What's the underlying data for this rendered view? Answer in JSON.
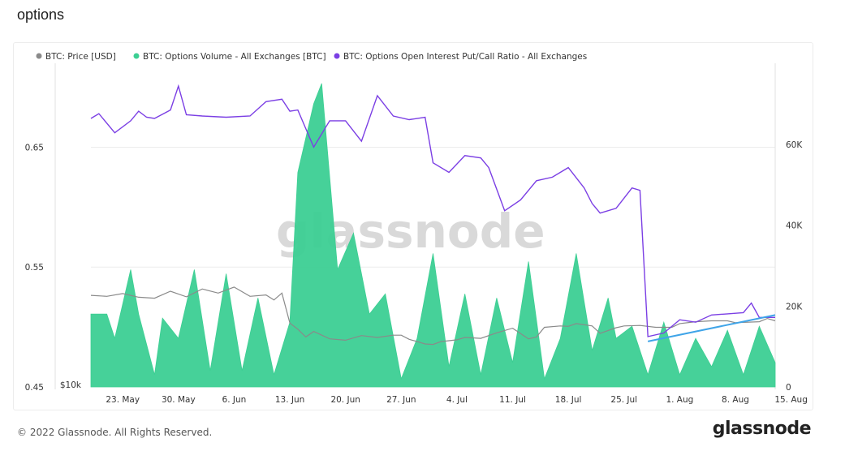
{
  "page": {
    "title": "options"
  },
  "footer": {
    "copyright": "© 2022 Glassnode. All Rights Reserved.",
    "logo": "glassnode"
  },
  "watermark": "glassnode",
  "colors": {
    "price": "#8a8a8a",
    "volume": "#3ccf93",
    "ratio": "#7b3fe4",
    "trend": "#3fa4e8",
    "grid": "#ececec"
  },
  "chart_data": {
    "type": "area",
    "legend": [
      {
        "name": "BTC: Price [USD]",
        "color": "#8a8a8a"
      },
      {
        "name": "BTC: Options Volume - All Exchanges [BTC]",
        "color": "#3ccf93"
      },
      {
        "name": "BTC: Options Open Interest Put/Call Ratio - All Exchanges",
        "color": "#7b3fe4"
      }
    ],
    "x_ticks": [
      "23. May",
      "30. May",
      "6. Jun",
      "13. Jun",
      "20. Jun",
      "27. Jun",
      "4. Jul",
      "11. Jul",
      "18. Jul",
      "25. Jul",
      "1. Aug",
      "8. Aug",
      "15. Aug"
    ],
    "left_axis": {
      "ticks": [
        "0.65",
        "0.55",
        "0.45"
      ],
      "values": [
        0.65,
        0.55,
        0.45
      ],
      "range": [
        0.45,
        0.72
      ]
    },
    "left_axis_price_label": "$10k",
    "right_axis": {
      "ticks": [
        "60K",
        "40K",
        "20K",
        "0"
      ],
      "values": [
        60000,
        40000,
        20000,
        0
      ],
      "range": [
        0,
        80000
      ]
    },
    "price_range": [
      10000,
      80000
    ],
    "series": [
      {
        "name": "BTC: Price [USD]",
        "axis": "left",
        "values": [
          [
            0,
            29800
          ],
          [
            2,
            29600
          ],
          [
            4,
            30200
          ],
          [
            6,
            29400
          ],
          [
            8,
            29200
          ],
          [
            10,
            30700
          ],
          [
            12,
            29500
          ],
          [
            14,
            31200
          ],
          [
            16,
            30300
          ],
          [
            18,
            31600
          ],
          [
            20,
            29600
          ],
          [
            22,
            29900
          ],
          [
            23,
            28800
          ],
          [
            24,
            30300
          ],
          [
            25,
            23800
          ],
          [
            26,
            22500
          ],
          [
            27,
            20800
          ],
          [
            28,
            22000
          ],
          [
            30,
            20400
          ],
          [
            32,
            20100
          ],
          [
            34,
            21100
          ],
          [
            36,
            20700
          ],
          [
            38,
            21200
          ],
          [
            39,
            21200
          ],
          [
            40,
            20300
          ],
          [
            42,
            19300
          ],
          [
            43,
            19200
          ],
          [
            44,
            19800
          ],
          [
            46,
            20200
          ],
          [
            47,
            20700
          ],
          [
            49,
            20500
          ],
          [
            51,
            21700
          ],
          [
            53,
            22700
          ],
          [
            55,
            20400
          ],
          [
            56,
            20800
          ],
          [
            57,
            22900
          ],
          [
            59,
            23200
          ],
          [
            60,
            23100
          ],
          [
            61,
            23700
          ],
          [
            63,
            23200
          ],
          [
            64,
            21600
          ],
          [
            66,
            22800
          ],
          [
            67,
            23200
          ],
          [
            69,
            23300
          ],
          [
            71,
            22900
          ],
          [
            73,
            22900
          ],
          [
            74,
            23700
          ],
          [
            76,
            24100
          ],
          [
            78,
            24300
          ],
          [
            80,
            24300
          ],
          [
            81,
            23900
          ],
          [
            84,
            24100
          ],
          [
            85,
            24800
          ],
          [
            86,
            24300
          ]
        ]
      },
      {
        "name": "BTC: Options Volume - All Exchanges [BTC]",
        "axis": "right",
        "values": [
          [
            0,
            18000
          ],
          [
            2,
            18000
          ],
          [
            3,
            12000
          ],
          [
            5,
            29000
          ],
          [
            6,
            18000
          ],
          [
            8,
            3000
          ],
          [
            9,
            17000
          ],
          [
            11,
            12000
          ],
          [
            13,
            29000
          ],
          [
            15,
            4000
          ],
          [
            17,
            28000
          ],
          [
            19,
            4000
          ],
          [
            21,
            22000
          ],
          [
            23,
            3000
          ],
          [
            25,
            16000
          ],
          [
            26,
            53000
          ],
          [
            28,
            70000
          ],
          [
            29,
            75000
          ],
          [
            31,
            29000
          ],
          [
            33,
            38000
          ],
          [
            35,
            18000
          ],
          [
            37,
            23000
          ],
          [
            39,
            2000
          ],
          [
            41,
            12000
          ],
          [
            43,
            33000
          ],
          [
            45,
            5000
          ],
          [
            47,
            23000
          ],
          [
            49,
            3000
          ],
          [
            51,
            22000
          ],
          [
            53,
            6000
          ],
          [
            55,
            31000
          ],
          [
            57,
            2000
          ],
          [
            59,
            12000
          ],
          [
            61,
            33000
          ],
          [
            63,
            9000
          ],
          [
            65,
            22000
          ],
          [
            66,
            12000
          ],
          [
            68,
            15000
          ],
          [
            70,
            3000
          ],
          [
            72,
            16000
          ],
          [
            74,
            3000
          ],
          [
            76,
            12000
          ],
          [
            78,
            5000
          ],
          [
            80,
            14000
          ],
          [
            82,
            3000
          ],
          [
            84,
            15000
          ],
          [
            86,
            6000
          ]
        ]
      },
      {
        "name": "BTC: Options Open Interest Put/Call Ratio - All Exchanges",
        "axis": "left",
        "values": [
          [
            0,
            0.674
          ],
          [
            1,
            0.678
          ],
          [
            3,
            0.662
          ],
          [
            5,
            0.672
          ],
          [
            6,
            0.68
          ],
          [
            7,
            0.675
          ],
          [
            8,
            0.674
          ],
          [
            10,
            0.681
          ],
          [
            11,
            0.701
          ],
          [
            12,
            0.677
          ],
          [
            14,
            0.676
          ],
          [
            17,
            0.675
          ],
          [
            20,
            0.676
          ],
          [
            22,
            0.688
          ],
          [
            24,
            0.69
          ],
          [
            25,
            0.68
          ],
          [
            26,
            0.681
          ],
          [
            28,
            0.65
          ],
          [
            30,
            0.672
          ],
          [
            32,
            0.672
          ],
          [
            34,
            0.655
          ],
          [
            36,
            0.693
          ],
          [
            38,
            0.676
          ],
          [
            40,
            0.673
          ],
          [
            42,
            0.675
          ],
          [
            43,
            0.637
          ],
          [
            45,
            0.629
          ],
          [
            47,
            0.643
          ],
          [
            49,
            0.641
          ],
          [
            50,
            0.633
          ],
          [
            52,
            0.597
          ],
          [
            54,
            0.606
          ],
          [
            56,
            0.622
          ],
          [
            58,
            0.625
          ],
          [
            60,
            0.633
          ],
          [
            62,
            0.616
          ],
          [
            63,
            0.603
          ],
          [
            64,
            0.595
          ],
          [
            66,
            0.599
          ],
          [
            68,
            0.616
          ],
          [
            69,
            0.614
          ],
          [
            70,
            0.492
          ],
          [
            72,
            0.495
          ],
          [
            74,
            0.506
          ],
          [
            76,
            0.504
          ],
          [
            78,
            0.51
          ],
          [
            80,
            0.511
          ],
          [
            82,
            0.512
          ],
          [
            83,
            0.52
          ],
          [
            84,
            0.508
          ],
          [
            86,
            0.508
          ]
        ]
      },
      {
        "name": "trend",
        "axis": "left",
        "values": [
          [
            70,
            0.488
          ],
          [
            86,
            0.51
          ]
        ]
      }
    ]
  }
}
